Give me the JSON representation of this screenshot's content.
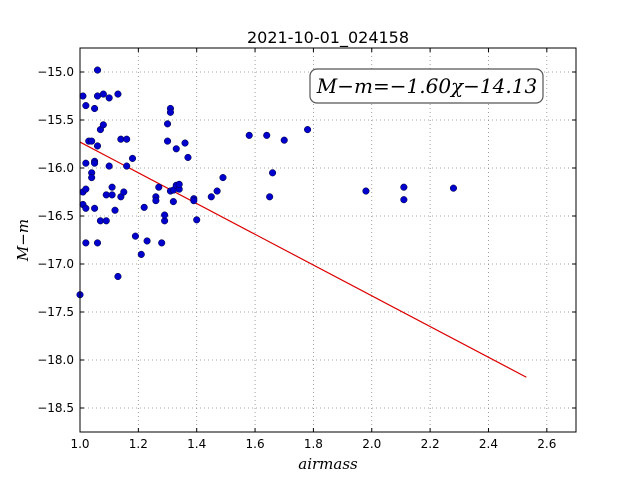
{
  "chart_data": {
    "type": "scatter",
    "title": "2021-10-01_024158",
    "xlabel": "airmass",
    "ylabel": "M−m",
    "xlim": [
      1.0,
      2.7
    ],
    "ylim": [
      -18.75,
      -14.75
    ],
    "y_inverted": true,
    "grid": true,
    "x_ticks": [
      1.0,
      1.2,
      1.4,
      1.6,
      1.8,
      2.0,
      2.2,
      2.4,
      2.6
    ],
    "x_tick_labels": [
      "1.0",
      "1.2",
      "1.4",
      "1.6",
      "1.8",
      "2.0",
      "2.2",
      "2.4",
      "2.6"
    ],
    "y_ticks": [
      -15.0,
      -15.5,
      -16.0,
      -16.5,
      -17.0,
      -17.5,
      -18.0,
      -18.5
    ],
    "y_tick_labels": [
      "−15.0",
      "−15.5",
      "−16.0",
      "−16.5",
      "−17.0",
      "−17.5",
      "−18.0",
      "−18.5"
    ],
    "annotation": "M−m=−1.60χ−14.13",
    "colors": {
      "points": "#0000cc",
      "fit": "#dd0000",
      "grid": "#888888"
    },
    "series": [
      {
        "kind": "points",
        "x": [
          1.0,
          1.01,
          1.01,
          1.02,
          1.02,
          1.01,
          1.02,
          1.02,
          1.03,
          1.02,
          1.04,
          1.04,
          1.05,
          1.05,
          1.05,
          1.06,
          1.06,
          1.06,
          1.07,
          1.07,
          1.08,
          1.08,
          1.09,
          1.09,
          1.1,
          1.1,
          1.11,
          1.11,
          1.12,
          1.13,
          1.13,
          1.14,
          1.14,
          1.15,
          1.16,
          1.16,
          1.18,
          1.19,
          1.21,
          1.22,
          1.23,
          1.26,
          1.26,
          1.27,
          1.28,
          1.29,
          1.29,
          1.3,
          1.3,
          1.31,
          1.31,
          1.31,
          1.32,
          1.32,
          1.33,
          1.33,
          1.34,
          1.34,
          1.36,
          1.37,
          1.39,
          1.39,
          1.4,
          1.45,
          1.47,
          1.49,
          1.58,
          1.64,
          1.65,
          1.66,
          1.7,
          1.78,
          1.98,
          2.11,
          2.11,
          2.28,
          1.04,
          1.05,
          1.06
        ],
        "y": [
          -17.32,
          -16.25,
          -16.38,
          -16.22,
          -16.42,
          -15.25,
          -15.35,
          -16.78,
          -15.72,
          -15.95,
          -16.05,
          -16.1,
          -15.38,
          -15.93,
          -16.42,
          -15.25,
          -15.77,
          -16.78,
          -16.55,
          -15.6,
          -15.55,
          -15.23,
          -16.28,
          -16.55,
          -15.27,
          -15.98,
          -16.2,
          -16.28,
          -16.44,
          -15.23,
          -17.13,
          -15.7,
          -16.3,
          -16.25,
          -15.7,
          -15.98,
          -15.9,
          -16.71,
          -16.9,
          -16.41,
          -16.76,
          -16.3,
          -16.34,
          -16.2,
          -16.78,
          -16.55,
          -16.49,
          -15.54,
          -15.72,
          -15.38,
          -15.42,
          -16.24,
          -16.23,
          -16.35,
          -15.8,
          -16.18,
          -16.22,
          -16.17,
          -15.74,
          -15.89,
          -16.32,
          -16.34,
          -16.54,
          -16.3,
          -16.24,
          -16.1,
          -15.66,
          -15.66,
          -16.3,
          -16.05,
          -15.71,
          -15.6,
          -16.24,
          -16.2,
          -16.33,
          -16.21,
          -15.72,
          -15.95,
          -14.98
        ]
      },
      {
        "kind": "fit-line",
        "x": [
          1.0,
          2.53
        ],
        "y": [
          -15.73,
          -18.18
        ]
      }
    ]
  }
}
